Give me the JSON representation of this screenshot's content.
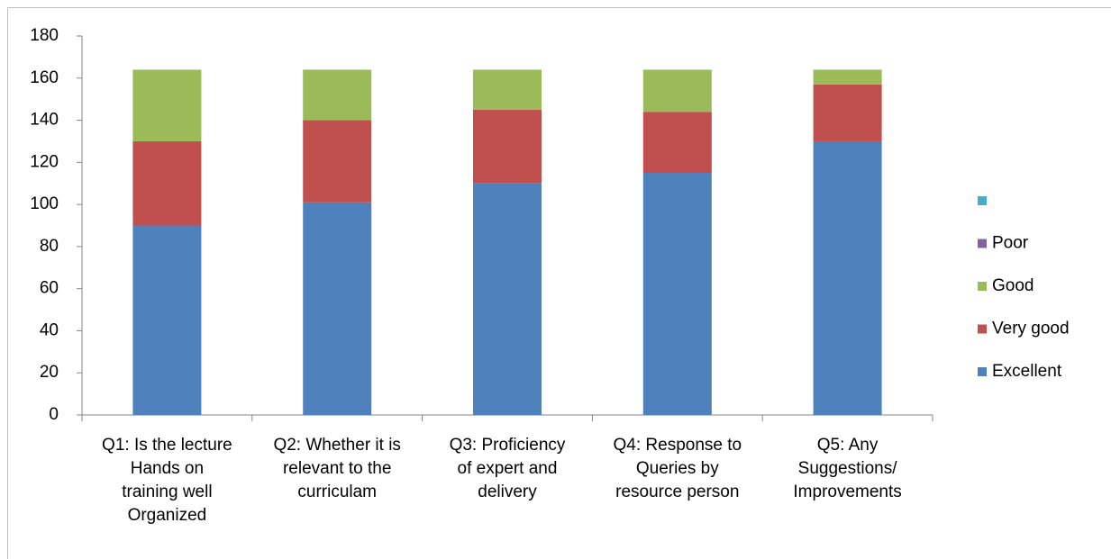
{
  "chart_data": {
    "type": "stacked_bar",
    "categories": [
      [
        "Q1: Is the lecture",
        "Hands on",
        "training well",
        "Organized"
      ],
      [
        "Q2: Whether it is",
        "relevant to the",
        "curriculam"
      ],
      [
        "Q3: Proficiency",
        "of expert and",
        "delivery"
      ],
      [
        "Q4: Response to",
        "Queries by",
        "resource person"
      ],
      [
        "Q5: Any",
        "Suggestions/",
        "Improvements"
      ]
    ],
    "series": [
      {
        "name": "Excellent",
        "color": "#4f81bd",
        "values": [
          90,
          101,
          110,
          115,
          130
        ]
      },
      {
        "name": "Very good",
        "color": "#c0504d",
        "values": [
          40,
          39,
          35,
          29,
          27
        ]
      },
      {
        "name": "Good",
        "color": "#9bbb59",
        "values": [
          34,
          24,
          19,
          20,
          7
        ]
      },
      {
        "name": "Poor",
        "color": "#8064a2",
        "values": [
          0,
          0,
          0,
          0,
          0
        ]
      },
      {
        "name": null,
        "color": "#4bacc6",
        "values": [
          0,
          0,
          0,
          0,
          0
        ]
      }
    ],
    "ylim": [
      0,
      180
    ],
    "yticks": [
      0,
      20,
      40,
      60,
      80,
      100,
      120,
      140,
      160,
      180
    ],
    "legend": "right"
  }
}
